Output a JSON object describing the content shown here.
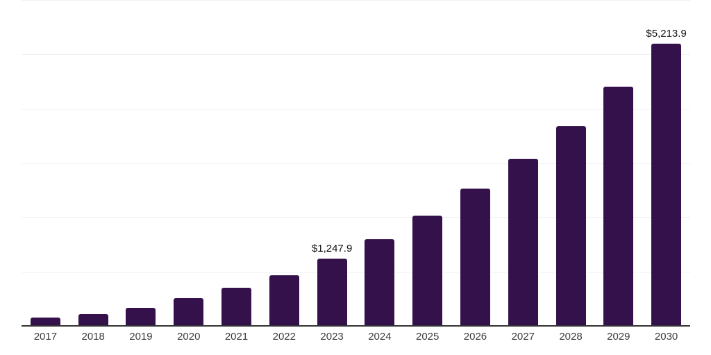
{
  "chart_data": {
    "type": "bar",
    "title": "",
    "xlabel": "",
    "ylabel": "",
    "categories": [
      "2017",
      "2018",
      "2019",
      "2020",
      "2021",
      "2022",
      "2023",
      "2024",
      "2025",
      "2026",
      "2027",
      "2028",
      "2029",
      "2030"
    ],
    "values": [
      160,
      235,
      340,
      525,
      715,
      950,
      1247.9,
      1610,
      2040,
      2545,
      3085,
      3690,
      4420,
      5213.9
    ],
    "labeled_points": [
      {
        "category": "2023",
        "label": "$1,247.9"
      },
      {
        "category": "2030",
        "label": "$5,213.9"
      }
    ],
    "ylim": [
      0,
      6000
    ],
    "gridline_step": 1000,
    "grid": "horizontal-only",
    "legend": "none",
    "y_axis_ticks_visible": false
  },
  "style": {
    "bar_color": "#35114C",
    "axis_color": "#333333",
    "gridline_color": "#f1f1f1",
    "data_label_color": "#111111",
    "tick_label_color": "#3c3c3c",
    "background_color": "#ffffff"
  }
}
